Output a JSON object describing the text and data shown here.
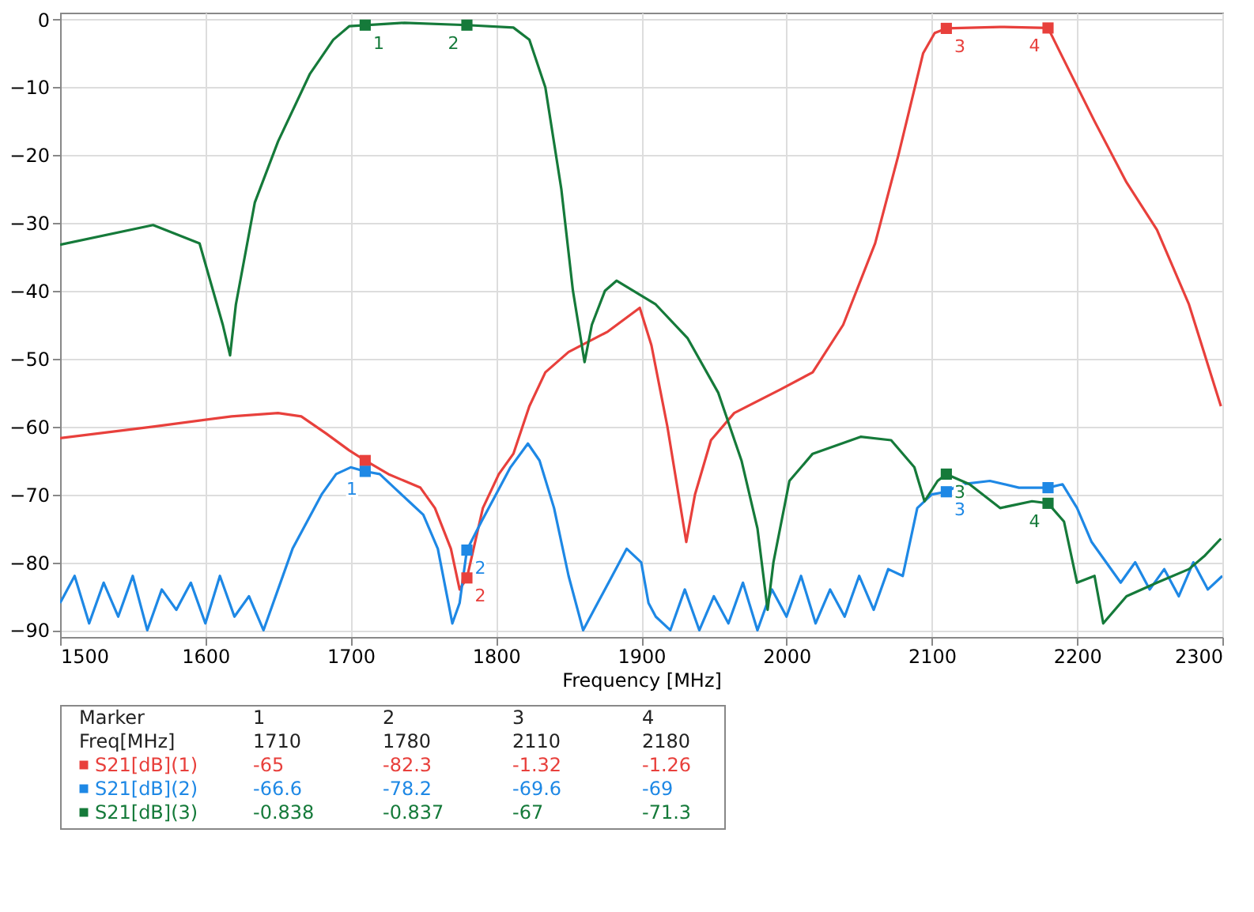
{
  "chart_data": {
    "type": "line",
    "xlabel": "Frequency [MHz]",
    "xlim": [
      1500,
      2300
    ],
    "xticks": [
      1500,
      1600,
      1700,
      1800,
      1900,
      2000,
      2100,
      2200,
      2300
    ],
    "ylim": [
      -91,
      1
    ],
    "yticks": [
      0,
      -10,
      -20,
      -30,
      -40,
      -50,
      -60,
      -70,
      -80,
      -90
    ],
    "grid": true,
    "legend": "bottom",
    "line_style": "solid",
    "series": [
      {
        "name": "S21[dB](1)",
        "color": "#e8403c",
        "type": "line",
        "x": [
          1500,
          1564,
          1618,
          1650,
          1666,
          1683,
          1699,
          1710,
          1726,
          1748,
          1758,
          1769,
          1775,
          1780,
          1791,
          1802,
          1812,
          1823,
          1834,
          1850,
          1877,
          1899,
          1907,
          1918,
          1931,
          1937,
          1948,
          1964,
          1996,
          2018,
          2039,
          2061,
          2077,
          2094,
          2102,
          2110,
          2147,
          2180,
          2191,
          2212,
          2234,
          2255,
          2277,
          2299
        ],
        "values": [
          -61.7,
          -60,
          -58.5,
          -58,
          -58.5,
          -61,
          -63.5,
          -65,
          -67,
          -69,
          -72,
          -78,
          -84,
          -82.3,
          -72,
          -67,
          -64,
          -57,
          -52,
          -49,
          -46,
          -42.5,
          -48,
          -60,
          -77,
          -70,
          -62,
          -58,
          -54.5,
          -52,
          -45,
          -33,
          -20,
          -5,
          -2,
          -1.32,
          -1.1,
          -1.26,
          -6,
          -15,
          -24,
          -31,
          -42,
          -57
        ]
      },
      {
        "name": "S21[dB](2)",
        "color": "#1e88e5",
        "type": "line",
        "x": [
          1500,
          1510,
          1520,
          1530,
          1540,
          1550,
          1560,
          1570,
          1580,
          1590,
          1600,
          1610,
          1620,
          1630,
          1640,
          1650,
          1660,
          1670,
          1680,
          1690,
          1700,
          1710,
          1720,
          1730,
          1740,
          1750,
          1760,
          1770,
          1775,
          1780,
          1790,
          1800,
          1810,
          1822,
          1830,
          1840,
          1850,
          1860,
          1870,
          1880,
          1890,
          1900,
          1905,
          1910,
          1920,
          1930,
          1940,
          1950,
          1960,
          1970,
          1980,
          1990,
          2000,
          2010,
          2020,
          2030,
          2040,
          2050,
          2060,
          2070,
          2080,
          2090,
          2100,
          2110,
          2120,
          2140,
          2160,
          2180,
          2190,
          2200,
          2210,
          2220,
          2230,
          2240,
          2250,
          2260,
          2270,
          2280,
          2290,
          2300
        ],
        "values": [
          -86,
          -82,
          -89,
          -83,
          -88,
          -82,
          -90,
          -84,
          -87,
          -83,
          -89,
          -82,
          -88,
          -85,
          -90,
          -84,
          -78,
          -74,
          -70,
          -67,
          -66,
          -66.6,
          -67,
          -69,
          -71,
          -73,
          -78,
          -89,
          -86,
          -78.2,
          -74,
          -70,
          -66,
          -62.5,
          -65,
          -72,
          -82,
          -90,
          -86,
          -82,
          -78,
          -80,
          -86,
          -88,
          -90,
          -84,
          -90,
          -85,
          -89,
          -83,
          -90,
          -84,
          -88,
          -82,
          -89,
          -84,
          -88,
          -82,
          -87,
          -81,
          -82,
          -72,
          -70,
          -69.6,
          -68.5,
          -68,
          -69,
          -69,
          -68.5,
          -72,
          -77,
          -80,
          -83,
          -80,
          -84,
          -81,
          -85,
          -80,
          -84,
          -82
        ]
      },
      {
        "name": "S21[dB](3)",
        "color": "#157a3a",
        "type": "line",
        "x": [
          1500,
          1564,
          1596,
          1612,
          1617,
          1621,
          1634,
          1650,
          1672,
          1688,
          1699,
          1710,
          1737,
          1780,
          1812,
          1823,
          1834,
          1845,
          1853,
          1861,
          1866,
          1875,
          1883,
          1910,
          1932,
          1953,
          1969,
          1980,
          1987,
          1991,
          2002,
          2018,
          2051,
          2072,
          2088,
          2095,
          2104,
          2110,
          2126,
          2147,
          2169,
          2180,
          2191,
          2200,
          2212,
          2218,
          2234,
          2255,
          2277,
          2288,
          2299
        ],
        "values": [
          -33.2,
          -30.3,
          -33,
          -45,
          -49.5,
          -42,
          -27,
          -18,
          -8,
          -3,
          -1,
          -0.838,
          -0.5,
          -0.837,
          -1.2,
          -3,
          -10,
          -25,
          -40,
          -50.5,
          -45,
          -40,
          -38.5,
          -42,
          -47,
          -55,
          -65,
          -75,
          -87,
          -80,
          -68,
          -64,
          -61.5,
          -62,
          -66,
          -71,
          -68,
          -67,
          -68.5,
          -72,
          -71,
          -71.3,
          -74,
          -83,
          -82,
          -89,
          -85,
          -83,
          -81,
          -79,
          -76.5
        ]
      },
      {
        "type": "scatter",
        "color": "#e8403c",
        "marker": "square",
        "x": [
          1710,
          1780,
          2110,
          2180
        ],
        "values": [
          -65,
          -82.3,
          -1.32,
          -1.26
        ]
      },
      {
        "type": "scatter",
        "color": "#1e88e5",
        "marker": "square",
        "x": [
          1710,
          1780,
          2110,
          2180
        ],
        "values": [
          -66.6,
          -78.2,
          -69.6,
          -69
        ]
      },
      {
        "type": "scatter",
        "color": "#157a3a",
        "marker": "square",
        "x": [
          1710,
          1780,
          2110,
          2180
        ],
        "values": [
          -0.838,
          -0.837,
          -67,
          -71.3
        ]
      }
    ],
    "annotations": [
      "Marker",
      "Freq[MHz]",
      "1710",
      "1780",
      "2110",
      "2180",
      "-65",
      "-82.3",
      "-1.32",
      "-1.26",
      "-66.6",
      "-78.2",
      "-69.6",
      "-69",
      "-0.838",
      "-0.837",
      "-67",
      "-71.3",
      {
        "text": "1",
        "x": 1710,
        "y": -0.838
      },
      {
        "text": "2",
        "x": 1780,
        "y": -0.837
      },
      {
        "text": "3",
        "x": 2110,
        "y": -1.32
      },
      {
        "text": "4",
        "x": 2180,
        "y": -1.26
      },
      {
        "text": "1",
        "x": 1710,
        "y": -66.6
      },
      {
        "text": "2",
        "x": 1780,
        "y": -78.2
      },
      {
        "text": "2",
        "x": 1780,
        "y": -82.3
      },
      {
        "text": "3",
        "x": 2110,
        "y": -67
      },
      {
        "text": "3",
        "x": 2110,
        "y": -69.6
      },
      {
        "text": "4",
        "x": 2180,
        "y": -71.3
      }
    ]
  }
}
